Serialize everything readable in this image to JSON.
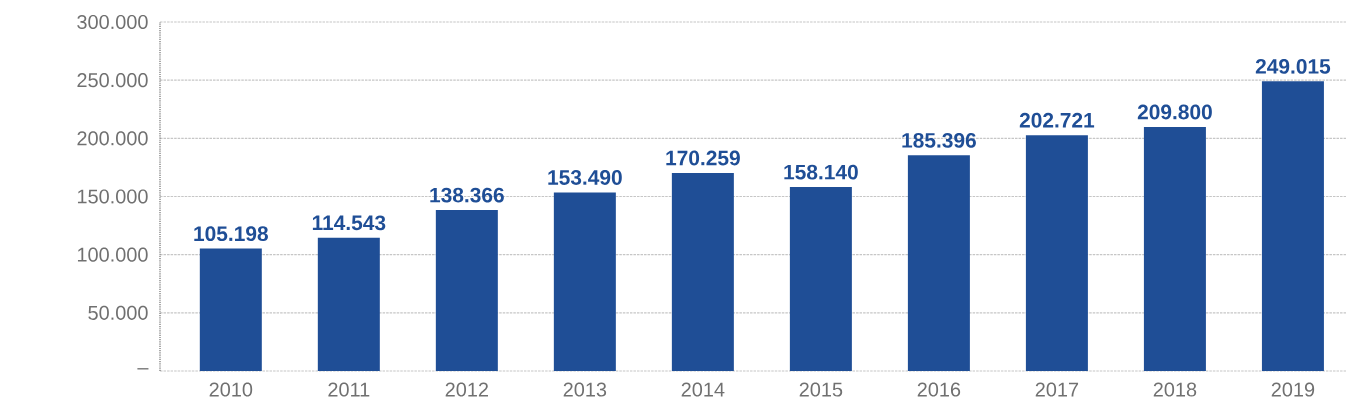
{
  "chart_data": {
    "type": "bar",
    "categories": [
      "2010",
      "2011",
      "2012",
      "2013",
      "2014",
      "2015",
      "2016",
      "2017",
      "2018",
      "2019"
    ],
    "values": [
      105198,
      114543,
      138366,
      153490,
      170259,
      158140,
      185396,
      202721,
      209800,
      249015
    ],
    "value_labels": [
      "105.198",
      "114.543",
      "138.366",
      "153.490",
      "170.259",
      "158.140",
      "185.396",
      "202.721",
      "209.800",
      "249.015"
    ],
    "color": "#1f4e96",
    "ylim": [
      0,
      300000
    ],
    "yticks": [
      {
        "value": 0,
        "label": "–"
      },
      {
        "value": 50000,
        "label": "50.000"
      },
      {
        "value": 100000,
        "label": "100.000"
      },
      {
        "value": 150000,
        "label": "150.000"
      },
      {
        "value": 200000,
        "label": "200.000"
      },
      {
        "value": 250000,
        "label": "250.000"
      },
      {
        "value": 300000,
        "label": "300.000"
      }
    ],
    "grid": "y"
  }
}
